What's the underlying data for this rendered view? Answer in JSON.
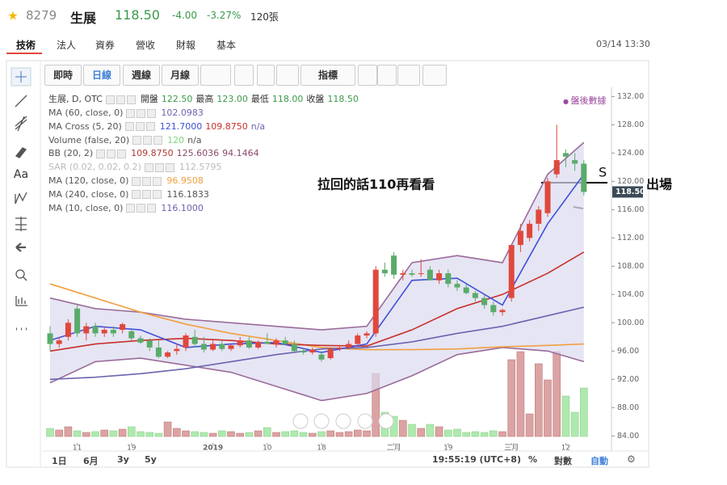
{
  "header": {
    "code": "8279",
    "name": "生展",
    "price": "118.50",
    "change": "-4.00",
    "change_pct": "-3.27%",
    "volume": "120張"
  },
  "tabs": [
    "技術",
    "法人",
    "資券",
    "營收",
    "財報",
    "基本"
  ],
  "datetime": "03/14 13:30",
  "toolbar": [
    "即時",
    "日線",
    "週線",
    "月線",
    "指標"
  ],
  "tools_text": "Aa",
  "legend": {
    "title": "生展, D, OTC",
    "ohlc": [
      {
        "label": "開盤",
        "value": "122.50"
      },
      {
        "label": "最高",
        "value": "123.00"
      },
      {
        "label": "最低",
        "value": "118.00"
      },
      {
        "label": "收盤",
        "value": "118.50"
      }
    ],
    "indicators": [
      {
        "name": "MA (60, close, 0)",
        "values": [
          "102.0983"
        ],
        "colors": [
          "#6a65b0"
        ]
      },
      {
        "name": "MA Cross (5, 20)",
        "values": [
          "121.7000",
          "109.8750",
          "n/a"
        ],
        "colors": [
          "#3f51d8",
          "#c8302a",
          "#6a65b0"
        ]
      },
      {
        "name": "Volume (false, 20)",
        "values": [
          "120",
          "n/a"
        ],
        "colors": [
          "#7fd67f",
          "#555555"
        ]
      },
      {
        "name": "BB (20, 2)",
        "values": [
          "109.8750",
          "125.6036",
          "94.1464"
        ],
        "colors": [
          "#b03a3a",
          "#8a4a6a",
          "#8a4a6a"
        ]
      },
      {
        "name": "SAR (0.02, 0.02, 0.2)",
        "values": [
          "112.5795"
        ],
        "colors": [
          "#bbbbbb"
        ],
        "faded": true
      },
      {
        "name": "MA (120, close, 0)",
        "values": [
          "96.9508"
        ],
        "colors": [
          "#f0a040"
        ]
      },
      {
        "name": "MA (240, close, 0)",
        "values": [
          "116.1833"
        ],
        "colors": [
          "#555555"
        ]
      },
      {
        "name": "MA (10, close, 0)",
        "values": [
          "116.1000"
        ],
        "colors": [
          "#6a65b0"
        ]
      }
    ],
    "after_hours": "盤後數據"
  },
  "chart_data": {
    "type": "candlestick",
    "categories": [
      null,
      null,
      null,
      "11",
      null,
      null,
      null,
      null,
      null,
      "19",
      null,
      null,
      null,
      null,
      null,
      null,
      null,
      null,
      "2019",
      null,
      null,
      null,
      null,
      null,
      "10",
      null,
      null,
      null,
      null,
      null,
      "18",
      null,
      null,
      null,
      null,
      null,
      null,
      null,
      "二月",
      null,
      null,
      null,
      null,
      null,
      "19",
      null,
      null,
      null,
      null,
      null,
      null,
      "三月",
      null,
      null,
      null,
      null,
      null,
      "12",
      null,
      null
    ],
    "open": [
      98.5,
      97,
      98,
      102,
      98.5,
      99.5,
      98.5,
      99,
      99,
      98.8,
      97.8,
      97.5,
      96.5,
      95.2,
      96,
      96.5,
      98,
      97,
      96.2,
      97,
      96.3,
      96.8,
      97.5,
      96.5,
      97.3,
      97,
      97.5,
      97,
      96,
      95.8,
      95.5,
      95,
      96.3,
      96.5,
      97,
      98.2,
      98.5,
      107.5,
      109.5,
      106.8,
      107,
      107,
      107.5,
      106,
      107,
      105.5,
      105,
      104.2,
      103.5,
      102.5,
      101.5,
      103.5,
      111,
      112,
      114,
      115.5,
      121,
      124,
      123,
      122.5
    ],
    "high": [
      99.5,
      98,
      100.5,
      102.5,
      100,
      100,
      99.5,
      99.5,
      100,
      99,
      98.2,
      97.8,
      97.5,
      96,
      97,
      98.5,
      99,
      98,
      97.5,
      97.5,
      97,
      98,
      98,
      97.5,
      98.5,
      97.8,
      98,
      97.5,
      96.5,
      96.5,
      96,
      96.5,
      96.8,
      97.5,
      98.5,
      98.8,
      108,
      108.5,
      110,
      107.5,
      107.5,
      109,
      108,
      107.5,
      107.5,
      106,
      105.5,
      104.5,
      104,
      103,
      102,
      111,
      114,
      114.5,
      116.5,
      120.5,
      128,
      124.5,
      124,
      123
    ],
    "low": [
      96,
      96.5,
      97.5,
      98,
      97.5,
      98,
      98,
      98,
      98.5,
      97.5,
      97,
      96,
      95,
      95,
      95.5,
      96,
      96.5,
      95.8,
      96,
      96,
      96,
      96.5,
      96.3,
      96.3,
      97,
      96.5,
      96.8,
      95.8,
      95.5,
      95.5,
      94.5,
      94.8,
      96,
      96.2,
      96.8,
      97.8,
      98,
      106.5,
      106.2,
      106,
      106.5,
      106.5,
      106,
      105.5,
      105,
      104.5,
      104,
      103,
      102,
      101,
      101,
      103,
      110,
      111.5,
      113,
      115,
      120.5,
      122,
      121.5,
      118
    ],
    "close": [
      97,
      97.5,
      100,
      98.5,
      99.5,
      98.5,
      99,
      98.5,
      99.8,
      97.8,
      97.2,
      96.5,
      95.2,
      95.8,
      96.3,
      98.2,
      97,
      96.2,
      97,
      96.3,
      96.8,
      97.5,
      96.5,
      97.3,
      97,
      97.5,
      97,
      96,
      95.8,
      96.2,
      94.8,
      96.3,
      96.5,
      97,
      98.2,
      98.5,
      107.5,
      107,
      106.8,
      107,
      106.8,
      107,
      106,
      107,
      105.5,
      105,
      104.2,
      103.5,
      102.5,
      101.5,
      101.8,
      111,
      113,
      114,
      116,
      120,
      123,
      123.5,
      122.5,
      118.5
    ],
    "volume": [
      20,
      16,
      24,
      14,
      10,
      12,
      16,
      14,
      18,
      24,
      12,
      10,
      8,
      36,
      20,
      14,
      12,
      10,
      8,
      14,
      12,
      8,
      10,
      14,
      22,
      10,
      12,
      14,
      10,
      8,
      12,
      14,
      10,
      12,
      16,
      14,
      156,
      60,
      50,
      40,
      30,
      20,
      30,
      24,
      16,
      18,
      10,
      12,
      10,
      14,
      12,
      190,
      210,
      56,
      180,
      140,
      210,
      100,
      60,
      120
    ],
    "volume_ylim": [
      0,
      280
    ],
    "up_color": "#e0483c",
    "down_color": "#5aab6a",
    "up_volume_color": "#dba3a3",
    "down_volume_color": "#aee9ae",
    "band_fill": "#dcdaf0",
    "lines": [
      {
        "color": "#9b6b9b",
        "x": [
          0,
          5,
          10,
          15,
          20,
          25,
          30,
          35,
          40,
          45,
          50,
          55,
          59
        ],
        "values": [
          103.5,
          102,
          101.5,
          100.5,
          100,
          99.5,
          99,
          99.5,
          108.5,
          109.5,
          108.5,
          121,
          125.5
        ]
      },
      {
        "color": "#9b6b9b",
        "x": [
          0,
          5,
          10,
          15,
          20,
          25,
          30,
          35,
          40,
          45,
          50,
          55,
          59
        ],
        "values": [
          91.5,
          94.5,
          95,
          94,
          93,
          91,
          89,
          90,
          92.5,
          95.5,
          96.5,
          96,
          94.5
        ]
      },
      {
        "color": "#f0a040",
        "x": [
          0,
          5,
          10,
          15,
          20,
          25,
          30,
          35,
          40,
          45,
          50,
          55,
          59
        ],
        "values": [
          105.5,
          103.5,
          101.5,
          99.8,
          98.5,
          97.5,
          96.5,
          96.2,
          96.2,
          96.3,
          96.6,
          96.8,
          97
        ]
      },
      {
        "color": "#6a65b0",
        "x": [
          0,
          5,
          10,
          15,
          20,
          25,
          30,
          35,
          40,
          45,
          50,
          55,
          59
        ],
        "values": [
          92,
          92.3,
          92.8,
          93.5,
          94.5,
          95.5,
          96.3,
          96.5,
          97.3,
          98.5,
          99.5,
          101,
          102.2
        ]
      },
      {
        "color": "#c8302a",
        "x": [
          0,
          5,
          10,
          15,
          20,
          25,
          30,
          35,
          40,
          45,
          50,
          55,
          59
        ],
        "values": [
          96,
          97,
          97.5,
          97.8,
          97.5,
          97,
          96.8,
          96.7,
          99,
          102,
          104,
          107,
          110
        ]
      },
      {
        "color": "#3f51d8",
        "x": [
          0,
          5,
          10,
          15,
          20,
          25,
          30,
          35,
          40,
          45,
          50,
          55,
          59
        ],
        "values": [
          97.5,
          99.5,
          99,
          96.5,
          97,
          97.2,
          95.8,
          97,
          106,
          106.3,
          102.5,
          114,
          121
        ]
      }
    ],
    "ylim": [
      83,
      133.3
    ],
    "yticks": [
      {
        "value": 84,
        "label": "84.00"
      },
      {
        "value": 88,
        "label": "88.00"
      },
      {
        "value": 92,
        "label": "92.00"
      },
      {
        "value": 96,
        "label": "96.00"
      },
      {
        "value": 100,
        "label": "100.00"
      },
      {
        "value": 104,
        "label": "104.00"
      },
      {
        "value": 108,
        "label": "108.00"
      },
      {
        "value": 112,
        "label": "112.00"
      },
      {
        "value": 116,
        "label": "116.00"
      },
      {
        "value": 120,
        "label": "120.00"
      },
      {
        "value": 124,
        "label": "124.00"
      },
      {
        "value": 128,
        "label": "128.00"
      },
      {
        "value": 132,
        "label": "132.00"
      }
    ],
    "last_price": {
      "value": 118.5,
      "label": "118.50"
    },
    "grid": false,
    "annotations": [
      "拉回的話110再看看",
      "S",
      "出場"
    ]
  },
  "bottom_bar": {
    "ranges": [
      "1日",
      "6月",
      "3y",
      "5y"
    ],
    "time": "19:55:19 (UTC+8)",
    "options": [
      "%",
      "對數",
      "自動"
    ]
  }
}
